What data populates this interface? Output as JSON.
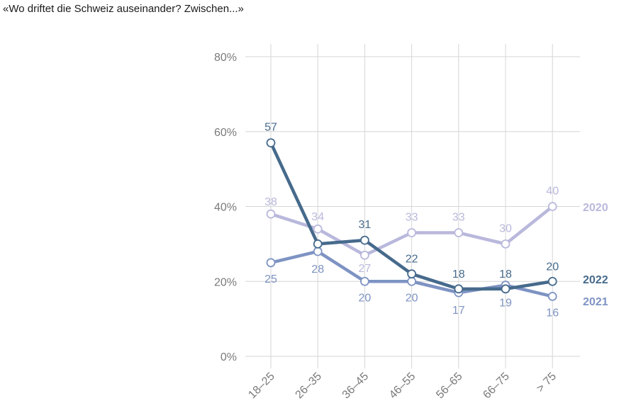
{
  "title": "«Wo driftet die Schweiz auseinander? Zwischen...»",
  "chart_data": {
    "type": "line",
    "title": "«Wo driftet die Schweiz auseinander? Zwischen...»",
    "categories": [
      "18–25",
      "26–35",
      "36–45",
      "46–55",
      "56–65",
      "66–75",
      "> 75"
    ],
    "ylim": [
      0,
      80
    ],
    "y_ticks": [
      "0%",
      "20%",
      "40%",
      "60%",
      "80%"
    ],
    "y_tick_values": [
      0,
      20,
      40,
      60,
      80
    ],
    "grid": true,
    "legend": "labels at right end of lines",
    "series": [
      {
        "name": "2020",
        "color": "#b9b8dc",
        "values": [
          38,
          34,
          27,
          33,
          33,
          30,
          40
        ]
      },
      {
        "name": "2021",
        "color": "#7e93c3",
        "values": [
          25,
          28,
          20,
          20,
          17,
          19,
          16
        ]
      },
      {
        "name": "2022",
        "color": "#466a8c",
        "values": [
          57,
          30,
          31,
          22,
          18,
          18,
          20
        ]
      }
    ],
    "data_labels": {
      "2020": [
        "38",
        "34",
        "27",
        "33",
        "33",
        "30",
        "40"
      ],
      "2021": [
        "25",
        "28",
        "20",
        "20",
        "17",
        "19",
        "16"
      ],
      "2022": [
        "57",
        "",
        "31",
        "22",
        "18",
        "18",
        "20"
      ]
    }
  }
}
